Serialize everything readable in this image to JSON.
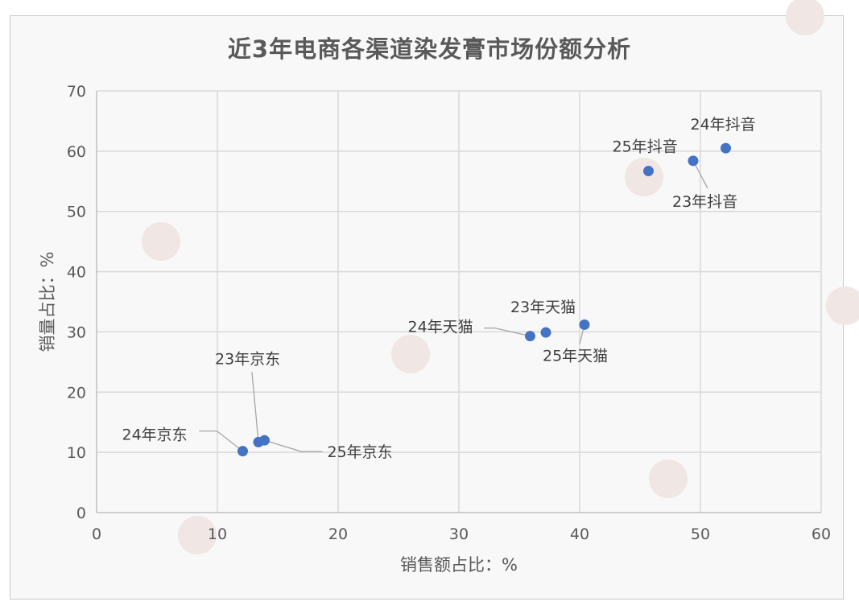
{
  "chart_data": {
    "type": "scatter",
    "title": "近3年电商各渠道染发膏市场份额分析",
    "xlabel": "销售额占比：%",
    "ylabel": "销量占比：%",
    "xlim": [
      0,
      60
    ],
    "ylim": [
      0,
      70
    ],
    "xticks": [
      "0",
      "10",
      "20",
      "30",
      "40",
      "50",
      "60"
    ],
    "yticks": [
      "0",
      "10",
      "20",
      "30",
      "40",
      "50",
      "60",
      "70"
    ],
    "grid": true,
    "marker_color": "#4472c4",
    "points": [
      {
        "label": "24年京东",
        "x": 12.1,
        "y": 10.2
      },
      {
        "label": "23年京东",
        "x": 13.4,
        "y": 11.7
      },
      {
        "label": "25年京东",
        "x": 13.9,
        "y": 12.0
      },
      {
        "label": "24年天猫",
        "x": 35.9,
        "y": 29.3
      },
      {
        "label": "23年天猫",
        "x": 37.2,
        "y": 29.9
      },
      {
        "label": "25年天猫",
        "x": 40.4,
        "y": 31.2
      },
      {
        "label": "25年抖音",
        "x": 45.7,
        "y": 56.7
      },
      {
        "label": "23年抖音",
        "x": 49.4,
        "y": 58.4
      },
      {
        "label": "24年抖音",
        "x": 52.1,
        "y": 60.5
      }
    ]
  }
}
